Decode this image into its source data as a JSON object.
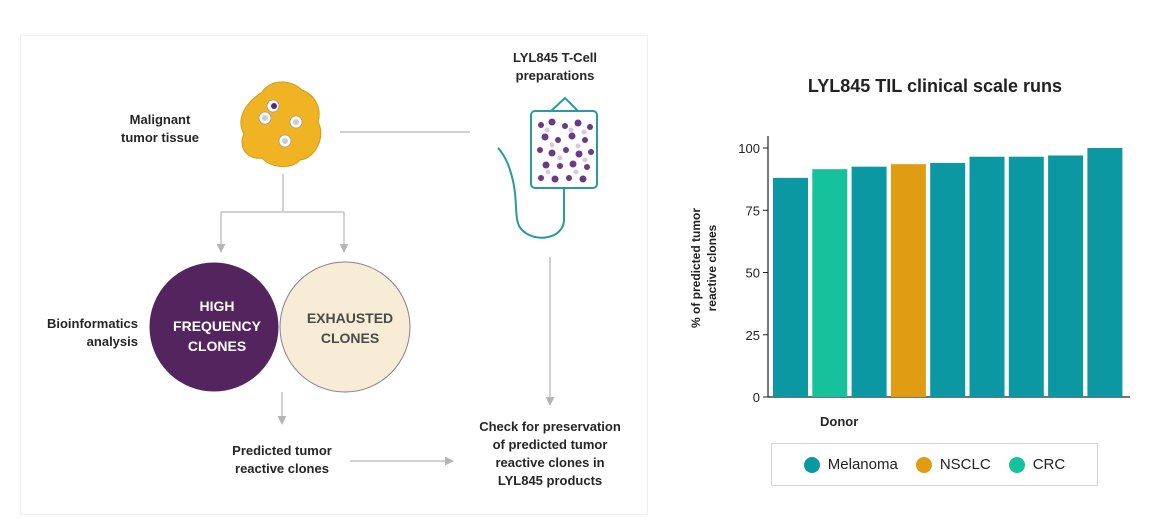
{
  "diagram": {
    "malignant_label": "Malignant\ntumor tissue",
    "tcell_label": "LYL845 T-Cell\npreparations",
    "bioinformatics_label": "Bioinformatics\nanalysis",
    "high_freq_label": "HIGH\nFREQUENCY\nCLONES",
    "exhausted_label": "EXHAUSTED\nCLONES",
    "predicted_label": "Predicted tumor\nreactive clones",
    "check_label": "Check for preservation\nof predicted tumor\nreactive clones in\nLYL845 products",
    "colors": {
      "high_freq": "#54245e",
      "exhausted": "#f7ecd5",
      "tumor": "#f0b323",
      "bag": "#2a9aa0"
    }
  },
  "chart_data": {
    "type": "bar",
    "title": "LYL845 TIL clinical scale runs",
    "xlabel": "Donor",
    "ylabel": "% of predicted tumor\nreactive clones",
    "ylim": [
      0,
      100
    ],
    "yticks": [
      0,
      25,
      50,
      75,
      100
    ],
    "values": [
      88,
      91.5,
      92.5,
      93.5,
      94,
      96.5,
      96.5,
      97,
      100
    ],
    "groups": [
      "Melanoma",
      "CRC",
      "Melanoma",
      "NSCLC",
      "Melanoma",
      "Melanoma",
      "Melanoma",
      "Melanoma",
      "Melanoma"
    ],
    "legend": [
      {
        "name": "Melanoma",
        "color": "#0b98a3"
      },
      {
        "name": "NSCLC",
        "color": "#e09c12"
      },
      {
        "name": "CRC",
        "color": "#15c29b"
      }
    ],
    "legend_position": "bottom"
  }
}
